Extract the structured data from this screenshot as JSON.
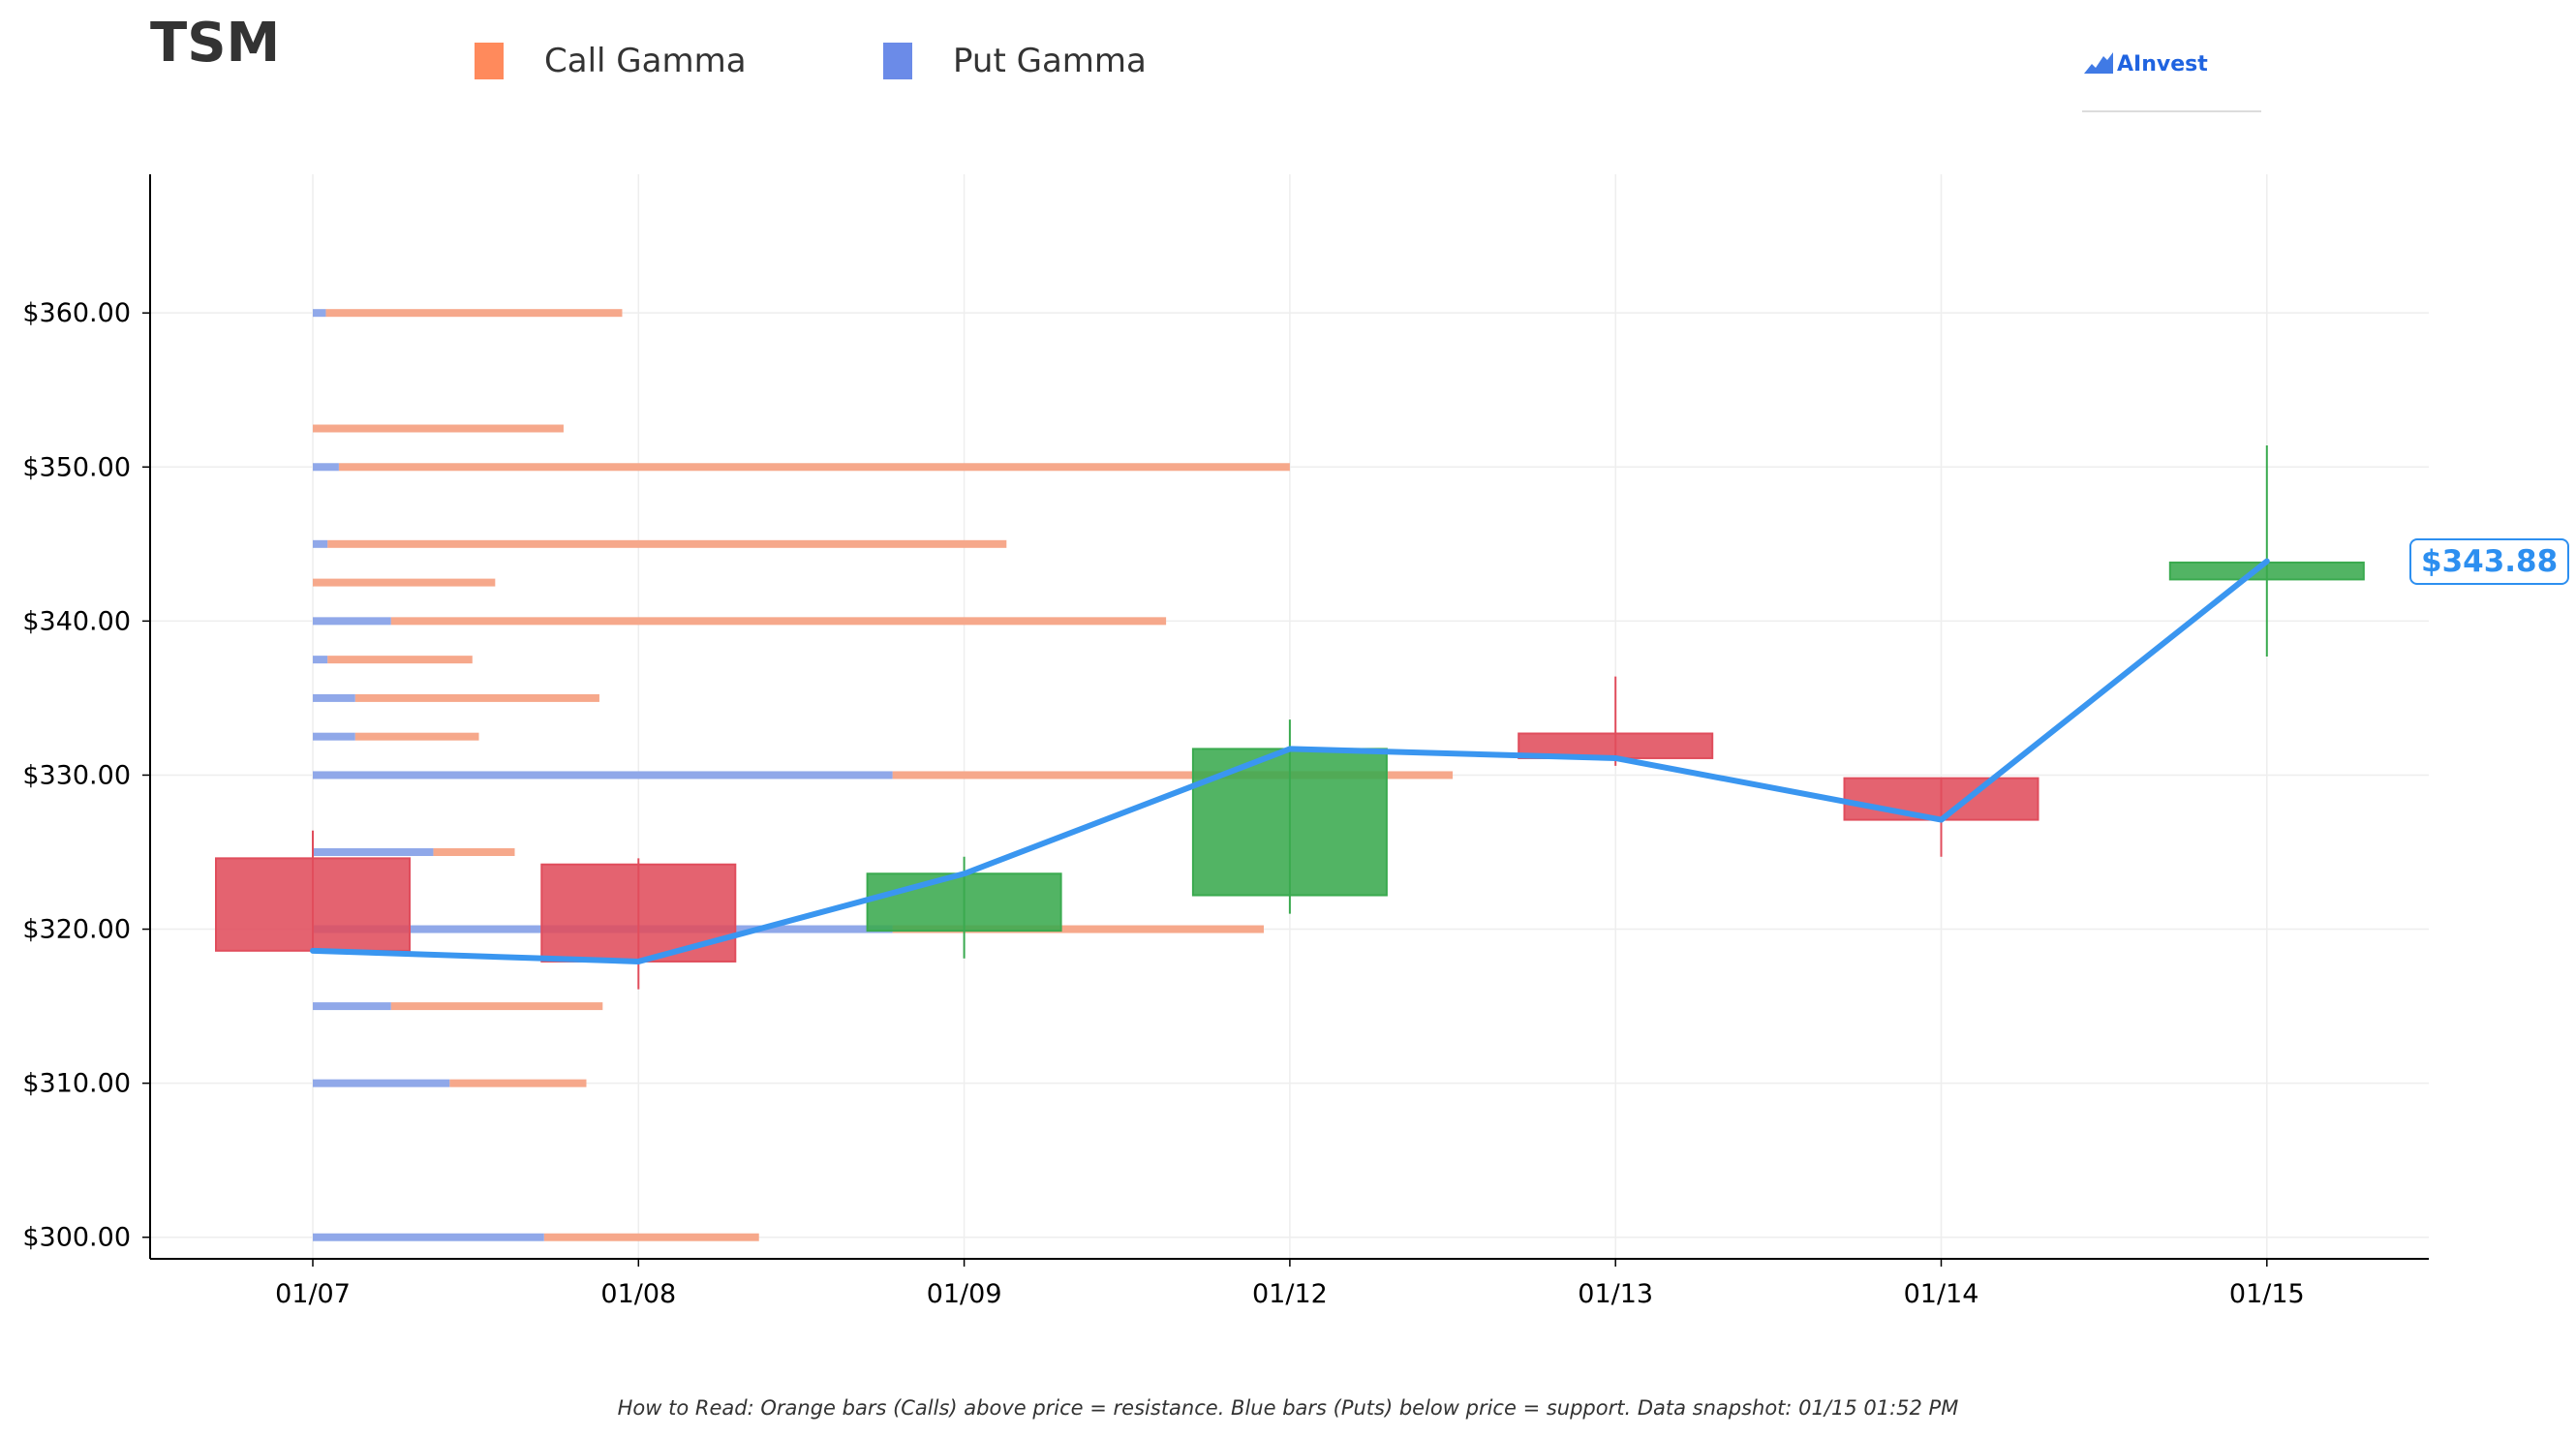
{
  "header": {
    "ticker": "TSM",
    "logo_text": "AInvest"
  },
  "legend": [
    {
      "label": "Call Gamma",
      "color": "#ff8a5c"
    },
    {
      "label": "Put Gamma",
      "color": "#6b8be8"
    }
  ],
  "current_price_label": "$343.88",
  "footnote": "How to Read: Orange bars (Calls) above price = resistance. Blue bars (Puts) below price = support. Data snapshot: 01/15 01:52 PM",
  "colors": {
    "up": "#3aaa4f",
    "down": "#e04d5c",
    "price_line": "#3a96f0",
    "call": "#f5a385",
    "put": "#8aa3e8",
    "grid": "#eeeeee"
  },
  "chart_data": {
    "type": "candlestick",
    "categories": [
      "01/07",
      "01/08",
      "01/09",
      "01/12",
      "01/13",
      "01/14",
      "01/15"
    ],
    "y_ticks": [
      "$300.00",
      "$310.00",
      "$320.00",
      "$330.00",
      "$340.00",
      "$350.00",
      "$360.00"
    ],
    "ylim": [
      298.6,
      369
    ],
    "candles": [
      {
        "date": "01/07",
        "open": 324.6,
        "high": 326.4,
        "low": 318.5,
        "close": 318.6
      },
      {
        "date": "01/08",
        "open": 324.2,
        "high": 324.6,
        "low": 316.1,
        "close": 317.9
      },
      {
        "date": "01/09",
        "open": 319.9,
        "high": 324.7,
        "low": 318.1,
        "close": 323.6
      },
      {
        "date": "01/12",
        "open": 322.2,
        "high": 333.6,
        "low": 321.0,
        "close": 331.7
      },
      {
        "date": "01/13",
        "open": 332.7,
        "high": 336.4,
        "low": 330.6,
        "close": 331.1
      },
      {
        "date": "01/14",
        "open": 329.8,
        "high": 329.8,
        "low": 324.7,
        "close": 327.1
      },
      {
        "date": "01/15",
        "open": 342.7,
        "high": 351.4,
        "low": 337.7,
        "close": 343.8
      }
    ],
    "price_line": [
      318.6,
      317.9,
      323.6,
      331.7,
      331.1,
      327.1,
      343.88
    ],
    "gamma_levels": [
      {
        "strike": 360.0,
        "put": 0.04,
        "total": 0.95
      },
      {
        "strike": 352.5,
        "put": 0.0,
        "total": 0.77
      },
      {
        "strike": 350.0,
        "put": 0.08,
        "total": 3.0
      },
      {
        "strike": 345.0,
        "put": 0.045,
        "total": 2.13
      },
      {
        "strike": 342.5,
        "put": 0.0,
        "total": 0.56
      },
      {
        "strike": 340.0,
        "put": 0.24,
        "total": 2.62
      },
      {
        "strike": 337.5,
        "put": 0.045,
        "total": 0.49
      },
      {
        "strike": 335.0,
        "put": 0.13,
        "total": 0.88
      },
      {
        "strike": 332.5,
        "put": 0.13,
        "total": 0.51
      },
      {
        "strike": 330.0,
        "put": 1.78,
        "total": 3.5
      },
      {
        "strike": 325.0,
        "put": 0.37,
        "total": 0.62
      },
      {
        "strike": 320.0,
        "put": 1.78,
        "total": 2.92
      },
      {
        "strike": 315.0,
        "put": 0.24,
        "total": 0.89
      },
      {
        "strike": 310.0,
        "put": 0.42,
        "total": 0.84
      },
      {
        "strike": 300.0,
        "put": 0.71,
        "total": 1.37
      }
    ]
  }
}
